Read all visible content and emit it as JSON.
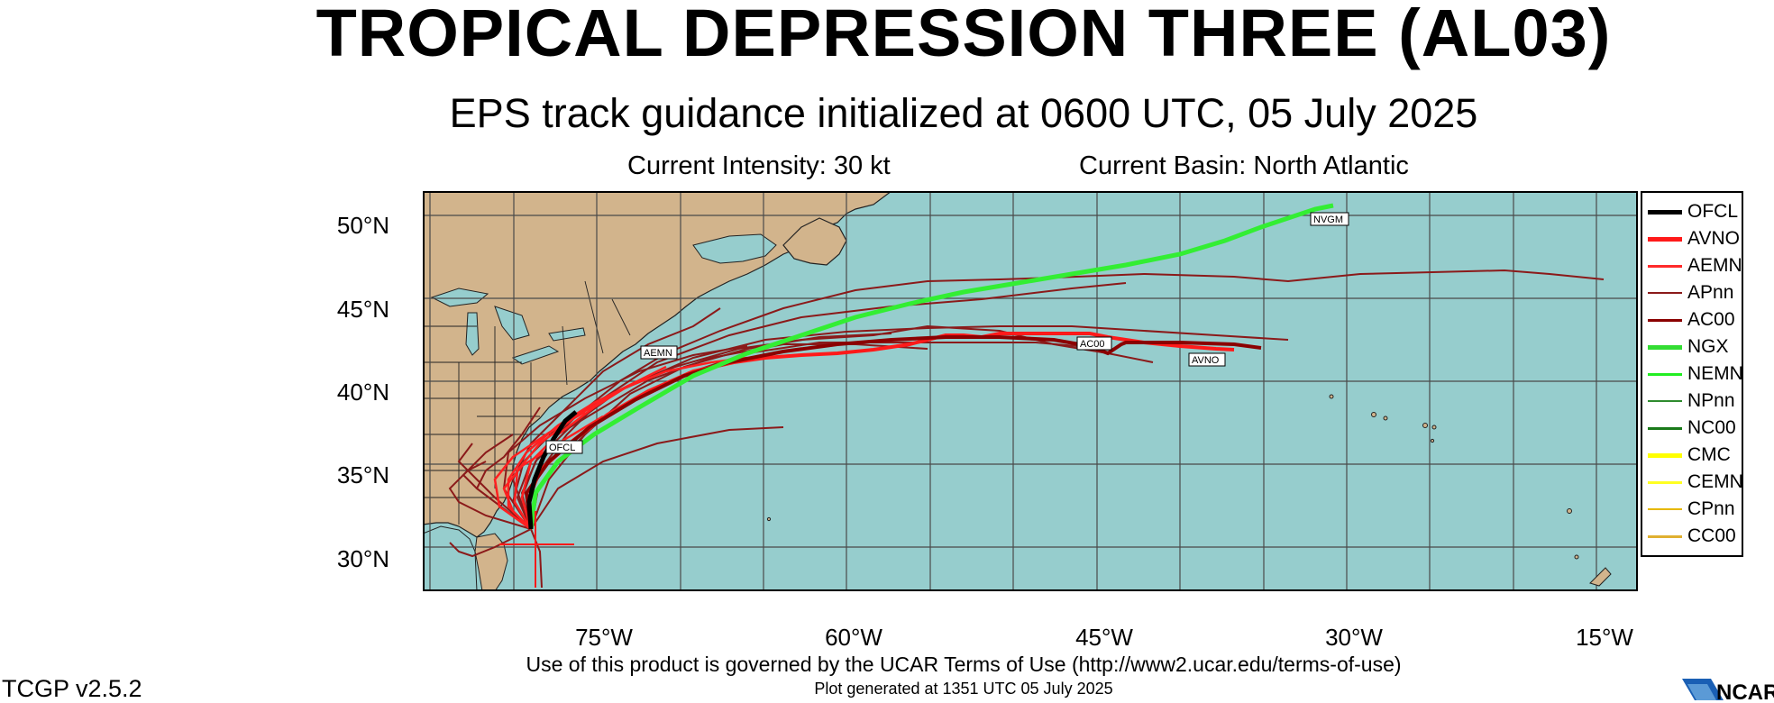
{
  "title": "TROPICAL DEPRESSION THREE (AL03)",
  "subtitle": "EPS track guidance initialized at 0600 UTC, 05 July 2025",
  "current_intensity": "Current Intensity: 30 kt",
  "current_basin": "Current Basin: North Atlantic",
  "lat_labels": [
    "50°N",
    "45°N",
    "40°N",
    "35°N",
    "30°N"
  ],
  "lon_labels": [
    "75°W",
    "60°W",
    "45°W",
    "30°W",
    "15°W"
  ],
  "track_labels": {
    "nvgm": "NVGM",
    "ac00": "AC00",
    "avno": "AVNO",
    "aemn": "AEMN",
    "ofcl": "OFCL"
  },
  "legend": [
    {
      "label": "OFCL",
      "color": "#000000",
      "weight": "thick"
    },
    {
      "label": "AVNO",
      "color": "#ff1a1a",
      "weight": "thick"
    },
    {
      "label": "AEMN",
      "color": "#ff2a2a",
      "weight": "medium"
    },
    {
      "label": "APnn",
      "color": "#8b1a1a",
      "weight": "thin"
    },
    {
      "label": "AC00",
      "color": "#8b0000",
      "weight": "medium"
    },
    {
      "label": "NGX",
      "color": "#33dd33",
      "weight": "thick"
    },
    {
      "label": "NEMN",
      "color": "#22ee22",
      "weight": "medium"
    },
    {
      "label": "NPnn",
      "color": "#2e8b2e",
      "weight": "thin"
    },
    {
      "label": "NC00",
      "color": "#1a7a1a",
      "weight": "medium"
    },
    {
      "label": "CMC",
      "color": "#ffff00",
      "weight": "thick"
    },
    {
      "label": "CEMN",
      "color": "#ffff22",
      "weight": "medium"
    },
    {
      "label": "CPnn",
      "color": "#e6b800",
      "weight": "thin"
    },
    {
      "label": "CC00",
      "color": "#e0b030",
      "weight": "medium"
    }
  ],
  "terms": "Use of this product is governed by the UCAR Terms of Use (http://www2.ucar.edu/terms-of-use)",
  "generated": "Plot generated at 1351 UTC   05 July 2025",
  "version": "TCGP v2.5.2",
  "logo_text": "NCAR",
  "colors": {
    "ocean": "#96cdcd",
    "land": "#d2b48c",
    "grid": "#4a4a4a"
  }
}
